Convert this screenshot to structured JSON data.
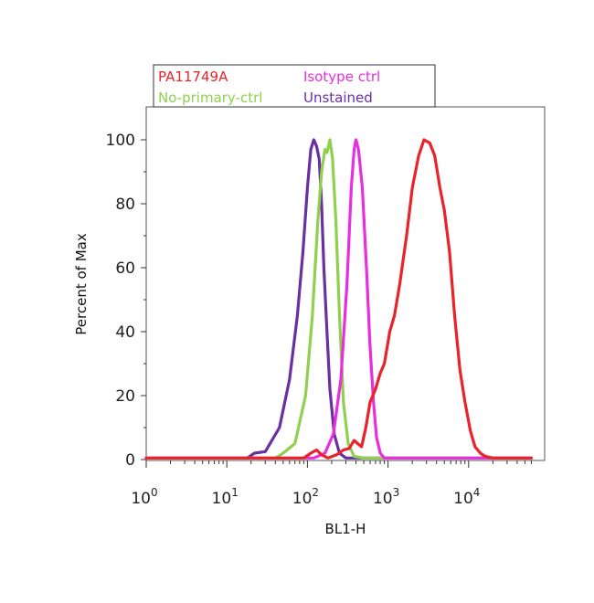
{
  "chart_data": {
    "type": "line",
    "title": "",
    "xlabel": "BL1-H",
    "ylabel": "Percent of Max",
    "x_scale": "log",
    "xlim": [
      1,
      60000
    ],
    "ylim": [
      0,
      110
    ],
    "x_ticks": [
      {
        "value": 1,
        "base": "10",
        "exp": "0"
      },
      {
        "value": 10,
        "base": "10",
        "exp": "1"
      },
      {
        "value": 100,
        "base": "10",
        "exp": "2"
      },
      {
        "value": 1000,
        "base": "10",
        "exp": "3"
      },
      {
        "value": 10000,
        "base": "10",
        "exp": "4"
      }
    ],
    "y_ticks": [
      0,
      20,
      40,
      60,
      80,
      100
    ],
    "grid": false,
    "legend_position": "top-left",
    "legend": [
      {
        "name": "PA11749A",
        "color": "#e8232a"
      },
      {
        "name": "Isotype ctrl",
        "color": "#e92ee0"
      },
      {
        "name": "No-primary-ctrl",
        "color": "#8fd14f"
      },
      {
        "name": "Unstained",
        "color": "#6a2fa0"
      }
    ],
    "series": [
      {
        "name": "Unstained",
        "color": "#6a2fa0",
        "points": [
          [
            1,
            0.5
          ],
          [
            10,
            0.5
          ],
          [
            18,
            0.5
          ],
          [
            22,
            2
          ],
          [
            30,
            2.5
          ],
          [
            45,
            10
          ],
          [
            60,
            25
          ],
          [
            75,
            45
          ],
          [
            88,
            65
          ],
          [
            100,
            85
          ],
          [
            110,
            97
          ],
          [
            120,
            100
          ],
          [
            130,
            98
          ],
          [
            140,
            94
          ],
          [
            150,
            80
          ],
          [
            160,
            60
          ],
          [
            175,
            40
          ],
          [
            190,
            22
          ],
          [
            215,
            8
          ],
          [
            250,
            2
          ],
          [
            300,
            0.5
          ],
          [
            60000,
            0.5
          ]
        ]
      },
      {
        "name": "No-primary-ctrl",
        "color": "#8fd14f",
        "points": [
          [
            1,
            0.5
          ],
          [
            40,
            0.5
          ],
          [
            50,
            2
          ],
          [
            70,
            5
          ],
          [
            95,
            20
          ],
          [
            115,
            45
          ],
          [
            135,
            75
          ],
          [
            150,
            90
          ],
          [
            165,
            97
          ],
          [
            175,
            96
          ],
          [
            190,
            100
          ],
          [
            205,
            94
          ],
          [
            225,
            75
          ],
          [
            250,
            45
          ],
          [
            280,
            18
          ],
          [
            320,
            5
          ],
          [
            380,
            1
          ],
          [
            500,
            0.5
          ],
          [
            60000,
            0.5
          ]
        ]
      },
      {
        "name": "Isotype ctrl",
        "color": "#e92ee0",
        "points": [
          [
            1,
            0.5
          ],
          [
            120,
            0.5
          ],
          [
            165,
            2
          ],
          [
            210,
            8
          ],
          [
            260,
            25
          ],
          [
            310,
            55
          ],
          [
            350,
            85
          ],
          [
            380,
            97
          ],
          [
            400,
            100
          ],
          [
            430,
            97
          ],
          [
            480,
            85
          ],
          [
            540,
            60
          ],
          [
            600,
            35
          ],
          [
            660,
            18
          ],
          [
            720,
            7
          ],
          [
            800,
            2
          ],
          [
            900,
            0.5
          ],
          [
            60000,
            0.5
          ]
        ]
      },
      {
        "name": "PA11749A",
        "color": "#e8232a",
        "points": [
          [
            1,
            0.5
          ],
          [
            90,
            0.5
          ],
          [
            110,
            2
          ],
          [
            130,
            3
          ],
          [
            150,
            1.5
          ],
          [
            180,
            0.5
          ],
          [
            230,
            1.5
          ],
          [
            280,
            3
          ],
          [
            330,
            3.5
          ],
          [
            380,
            6
          ],
          [
            420,
            5
          ],
          [
            470,
            4
          ],
          [
            530,
            10
          ],
          [
            600,
            18
          ],
          [
            700,
            22
          ],
          [
            800,
            27
          ],
          [
            900,
            30
          ],
          [
            1050,
            40
          ],
          [
            1200,
            45
          ],
          [
            1400,
            55
          ],
          [
            1700,
            70
          ],
          [
            2000,
            85
          ],
          [
            2400,
            95
          ],
          [
            2800,
            100
          ],
          [
            3300,
            99
          ],
          [
            3800,
            95
          ],
          [
            4400,
            85
          ],
          [
            5000,
            78
          ],
          [
            5800,
            65
          ],
          [
            6700,
            45
          ],
          [
            7800,
            28
          ],
          [
            9000,
            18
          ],
          [
            10500,
            9
          ],
          [
            12000,
            4
          ],
          [
            14000,
            2
          ],
          [
            16000,
            1
          ],
          [
            20000,
            0.5
          ],
          [
            60000,
            0.5
          ]
        ]
      }
    ]
  }
}
